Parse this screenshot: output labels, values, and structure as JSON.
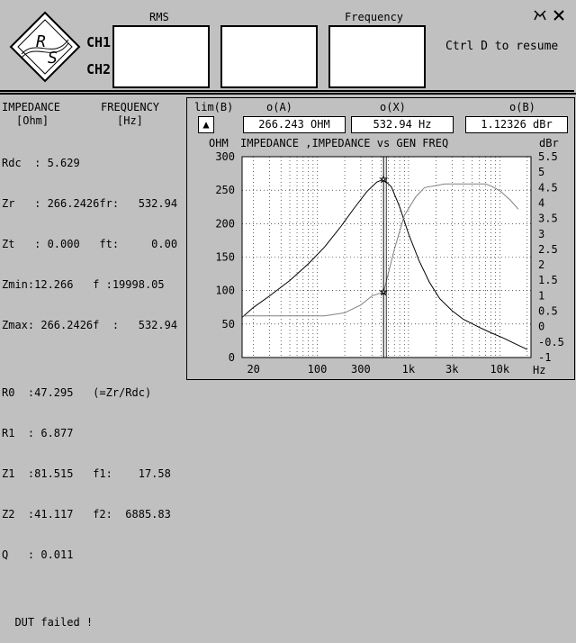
{
  "header": {
    "rms_label": "RMS",
    "frequency_label": "Frequency",
    "ch1_label": "CH1",
    "ch2_label": "CH2",
    "resume_hint": "Ctrl D to resume",
    "logo_letters": [
      "R",
      "S"
    ]
  },
  "left": {
    "impedance_heading": "IMPEDANCE",
    "frequency_heading": "FREQUENCY",
    "impedance_unit": "[Ohm]",
    "frequency_unit": "[Hz]",
    "lines": [
      "Rdc  : 5.629",
      "Zr   : 266.2426fr:   532.94",
      "Zt   : 0.000   ft:     0.00",
      "Zmin:12.266   f :19998.05",
      "Zmax: 266.2426f  :   532.94",
      "",
      "R0  :47.295   (=Zr/Rdc)",
      "R1  : 6.877",
      "Z1  :81.515   f1:    17.58",
      "Z2  :41.117   f2:  6885.83",
      "Q   : 0.011",
      "",
      "  DUT failed !"
    ]
  },
  "readouts": {
    "lim_label": "lim(B)",
    "oa_label": "o(A)",
    "ox_label": "o(X)",
    "ob_label": "o(B)",
    "oa_value": "266.243 OHM",
    "ox_value": "532.94  Hz",
    "ob_value": "1.12326 dBr",
    "lim_button": "▲"
  },
  "chart_data": {
    "type": "line",
    "title": "IMPEDANCE    ,IMPEDANCE     vs     GEN FREQ",
    "y_left_unit": "OHM",
    "y_right_unit": "dBr",
    "x_unit": "Hz",
    "x_scale": "log",
    "xlim": [
      15,
      22000
    ],
    "ylim_left": [
      0,
      300
    ],
    "ylim_right": [
      -1,
      5.5
    ],
    "x_tick_labels": [
      "20",
      "100",
      "300",
      "1k",
      "3k",
      "10k"
    ],
    "x_tick_values": [
      20,
      100,
      300,
      1000,
      3000,
      10000
    ],
    "y_left_ticks": [
      0,
      50,
      100,
      150,
      200,
      250,
      300
    ],
    "y_left_tick_labels": [
      "0",
      "50",
      "100",
      "150",
      "200",
      "250",
      "300"
    ],
    "y_right_ticks": [
      -1,
      -0.5,
      0,
      0.5,
      1,
      1.5,
      2,
      2.5,
      3,
      3.5,
      4,
      4.5,
      5,
      5.5
    ],
    "y_right_tick_labels": [
      "-1",
      "-0.5",
      "0",
      "0.5",
      "1",
      "1.5",
      "2",
      "2.5",
      "3",
      "3.5",
      "4",
      "4.5",
      "5",
      "5.5"
    ],
    "cursor_x": 532.94,
    "grid": true,
    "series": [
      {
        "axis": "left",
        "color": "#000000",
        "points": [
          [
            15,
            60
          ],
          [
            20,
            75
          ],
          [
            30,
            92
          ],
          [
            50,
            115
          ],
          [
            80,
            140
          ],
          [
            120,
            165
          ],
          [
            180,
            195
          ],
          [
            250,
            222
          ],
          [
            350,
            248
          ],
          [
            450,
            262
          ],
          [
            532.94,
            266.2
          ],
          [
            650,
            255
          ],
          [
            800,
            225
          ],
          [
            1000,
            185
          ],
          [
            1300,
            145
          ],
          [
            1700,
            112
          ],
          [
            2200,
            88
          ],
          [
            3000,
            70
          ],
          [
            4000,
            57
          ],
          [
            6000,
            45
          ],
          [
            8000,
            37
          ],
          [
            11000,
            29
          ],
          [
            15000,
            20
          ],
          [
            20000,
            12
          ]
        ]
      },
      {
        "axis": "right",
        "color": "#808080",
        "points": [
          [
            15,
            0.35
          ],
          [
            20,
            0.35
          ],
          [
            40,
            0.35
          ],
          [
            80,
            0.35
          ],
          [
            120,
            0.35
          ],
          [
            200,
            0.45
          ],
          [
            300,
            0.7
          ],
          [
            400,
            1.0
          ],
          [
            532.94,
            1.12
          ],
          [
            700,
            2.5
          ],
          [
            900,
            3.6
          ],
          [
            1200,
            4.2
          ],
          [
            1500,
            4.5
          ],
          [
            2500,
            4.62
          ],
          [
            5000,
            4.62
          ],
          [
            7000,
            4.62
          ],
          [
            8000,
            4.55
          ],
          [
            10000,
            4.4
          ],
          [
            13000,
            4.1
          ],
          [
            16000,
            3.8
          ]
        ]
      }
    ]
  },
  "toolbar_icons": [
    "pin-icon",
    "close-icon"
  ]
}
